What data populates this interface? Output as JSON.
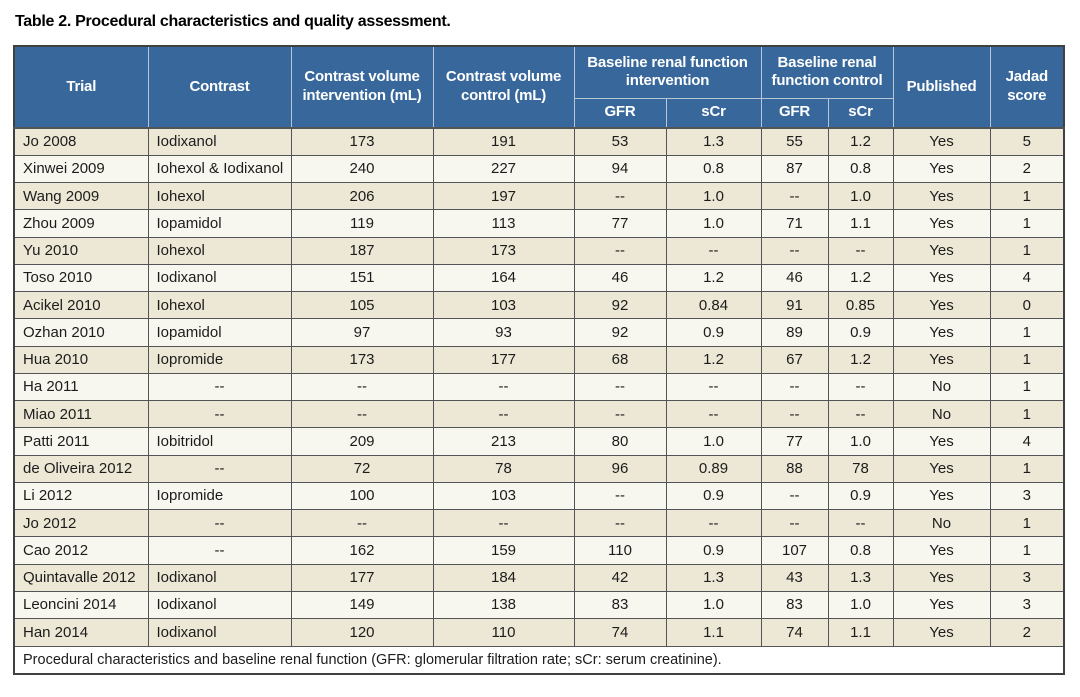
{
  "title": "Table 2. Procedural characteristics and quality assessment.",
  "colors": {
    "header_bg": "#38689b",
    "header_text": "#ffffff",
    "row_odd": "#ece8d5",
    "row_even": "#f8f7ef",
    "border_dark": "#535456",
    "border_light": "#b9c6d6"
  },
  "table": {
    "header": {
      "trial": "Trial",
      "contrast": "Contrast",
      "cv_intervention": "Contrast volume intervention (mL)",
      "cv_control": "Contrast volume control (mL)",
      "baseline_intervention": "Baseline renal function intervention",
      "baseline_control": "Baseline renal function control",
      "gfr_intervention": "GFR",
      "scr_intervention": "sCr",
      "gfr_control": "GFR",
      "scr_control": "sCr",
      "published": "Published",
      "jadad": "Jadad score"
    },
    "rows": [
      [
        "Jo 2008",
        "Iodixanol",
        "173",
        "191",
        "53",
        "1.3",
        "55",
        "1.2",
        "Yes",
        "5"
      ],
      [
        "Xinwei 2009",
        "Iohexol & Iodixanol",
        "240",
        "227",
        "94",
        "0.8",
        "87",
        "0.8",
        "Yes",
        "2"
      ],
      [
        "Wang 2009",
        "Iohexol",
        "206",
        "197",
        "--",
        "1.0",
        "--",
        "1.0",
        "Yes",
        "1"
      ],
      [
        "Zhou 2009",
        "Iopamidol",
        "119",
        "113",
        "77",
        "1.0",
        "71",
        "1.1",
        "Yes",
        "1"
      ],
      [
        "Yu 2010",
        "Iohexol",
        "187",
        "173",
        "--",
        "--",
        "--",
        "--",
        "Yes",
        "1"
      ],
      [
        "Toso 2010",
        "Iodixanol",
        "151",
        "164",
        "46",
        "1.2",
        "46",
        "1.2",
        "Yes",
        "4"
      ],
      [
        "Acikel 2010",
        "Iohexol",
        "105",
        "103",
        "92",
        "0.84",
        "91",
        "0.85",
        "Yes",
        "0"
      ],
      [
        "Ozhan 2010",
        "Iopamidol",
        "97",
        "93",
        "92",
        "0.9",
        "89",
        "0.9",
        "Yes",
        "1"
      ],
      [
        "Hua 2010",
        "Iopromide",
        "173",
        "177",
        "68",
        "1.2",
        "67",
        "1.2",
        "Yes",
        "1"
      ],
      [
        "Ha 2011",
        "--",
        "--",
        "--",
        "--",
        "--",
        "--",
        "--",
        "No",
        "1"
      ],
      [
        "Miao 2011",
        "--",
        "--",
        "--",
        "--",
        "--",
        "--",
        "--",
        "No",
        "1"
      ],
      [
        "Patti 2011",
        "Iobitridol",
        "209",
        "213",
        "80",
        "1.0",
        "77",
        "1.0",
        "Yes",
        "4"
      ],
      [
        "de Oliveira 2012",
        "--",
        "72",
        "78",
        "96",
        "0.89",
        "88",
        "78",
        "Yes",
        "1"
      ],
      [
        "Li 2012",
        "Iopromide",
        "100",
        "103",
        "--",
        "0.9",
        "--",
        "0.9",
        "Yes",
        "3"
      ],
      [
        "Jo 2012",
        "--",
        "--",
        "--",
        "--",
        "--",
        "--",
        "--",
        "No",
        "1"
      ],
      [
        "Cao 2012",
        "--",
        "162",
        "159",
        "110",
        "0.9",
        "107",
        "0.8",
        "Yes",
        "1"
      ],
      [
        "Quintavalle 2012",
        "Iodixanol",
        "177",
        "184",
        "42",
        "1.3",
        "43",
        "1.3",
        "Yes",
        "3"
      ],
      [
        "Leoncini 2014",
        "Iodixanol",
        "149",
        "138",
        "83",
        "1.0",
        "83",
        "1.0",
        "Yes",
        "3"
      ],
      [
        "Han 2014",
        "Iodixanol",
        "120",
        "110",
        "74",
        "1.1",
        "74",
        "1.1",
        "Yes",
        "2"
      ]
    ],
    "footer": "Procedural characteristics and baseline renal function (GFR: glomerular filtration rate; sCr: serum creatinine)."
  }
}
